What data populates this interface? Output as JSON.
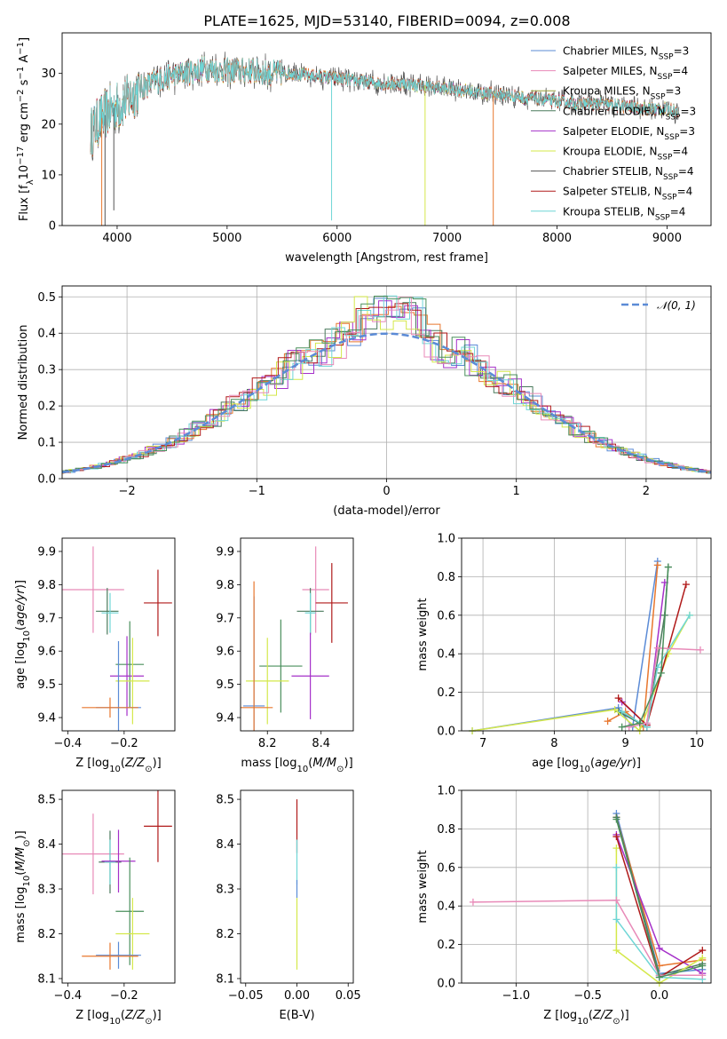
{
  "figure": {
    "title": "PLATE=1625, MJD=53140, FIBERID=0094, z=0.008"
  },
  "colors": {
    "Chabrier MILES": "#5b8bd6",
    "Salpeter MILES": "#e8772e",
    "Kroupa MILES": "#4a8f5c",
    "Chabrier ELODIE": "#4a7a5c",
    "Salpeter ELODIE": "#a530c9",
    "Kroupa ELODIE": "#d4e84a",
    "Chabrier STELIB": "#555555",
    "Salpeter STELIB": "#b01a1a",
    "Kroupa STELIB": "#6fd6d6",
    "Pink": "#e88ab8",
    "Normal": "#5b8bd6"
  },
  "chart_data": [
    {
      "id": "spectrum",
      "type": "line",
      "title": "PLATE=1625, MJD=53140, FIBERID=0094, z=0.008",
      "xlabel": "wavelength [Angstrom, rest frame]",
      "ylabel_parts": [
        "Flux [f",
        "λ",
        "10",
        "−17",
        " erg cm",
        "−2",
        " s",
        "−1",
        " A",
        "−1",
        "]"
      ],
      "xlim": [
        3500,
        9400
      ],
      "ylim": [
        0,
        38
      ],
      "xticks": [
        4000,
        5000,
        6000,
        7000,
        8000,
        9000
      ],
      "yticks": [
        0,
        10,
        20,
        30
      ],
      "legend_position": "top-right",
      "legend": [
        {
          "name": "Chabrier MILES",
          "nssp": "3",
          "color": "#5b8bd6"
        },
        {
          "name": "Salpeter MILES",
          "nssp": "4",
          "color": "#e88ab8"
        },
        {
          "name": "Kroupa MILES",
          "nssp": "3",
          "color": "#9aa03a"
        },
        {
          "name": "Chabrier ELODIE",
          "nssp": "3",
          "color": "#4a7a5c"
        },
        {
          "name": "Salpeter ELODIE",
          "nssp": "3",
          "color": "#a530c9"
        },
        {
          "name": "Kroupa ELODIE",
          "nssp": "4",
          "color": "#d4e84a"
        },
        {
          "name": "Chabrier STELIB",
          "nssp": "4",
          "color": "#555555"
        },
        {
          "name": "Salpeter STELIB",
          "nssp": "4",
          "color": "#b01a1a"
        },
        {
          "name": "Kroupa STELIB",
          "nssp": "4",
          "color": "#6fd6d6"
        }
      ],
      "continuum": {
        "x": [
          3750,
          3850,
          3950,
          4050,
          4200,
          4400,
          4600,
          4800,
          5000,
          5200,
          5400,
          5600,
          5800,
          6000,
          6200,
          6400,
          6600,
          6800,
          7000,
          7200,
          7400,
          7600,
          7800,
          8000,
          8200,
          8400,
          8600,
          8800,
          9000,
          9100
        ],
        "y": [
          18,
          21,
          23,
          24,
          27,
          29,
          30,
          31,
          30.5,
          30.5,
          30,
          30,
          29.5,
          29,
          28.5,
          28,
          28,
          27.5,
          27,
          26.5,
          26,
          25.5,
          25,
          24.5,
          24,
          24,
          23.5,
          23,
          23,
          22.5
        ]
      },
      "dips": [
        {
          "x": 3860,
          "y": 0
        },
        {
          "x": 3890,
          "y": 0
        },
        {
          "x": 3970,
          "y": 3
        },
        {
          "x": 5950,
          "y": 1
        },
        {
          "x": 6800,
          "y": 0
        },
        {
          "x": 7420,
          "y": 0
        }
      ]
    },
    {
      "id": "residuals",
      "type": "line",
      "xlabel": "(data-model)/error",
      "ylabel": "Normed distribution",
      "xlim": [
        -2.5,
        2.5
      ],
      "ylim": [
        0,
        0.53
      ],
      "xticks": [
        -2,
        -1,
        0,
        1,
        2
      ],
      "yticks": [
        0.0,
        0.1,
        0.2,
        0.3,
        0.4,
        0.5
      ],
      "grid": true,
      "legend_position": "top-right",
      "normal_label": "𝒩(0, 1)"
    },
    {
      "id": "age-vs-Z",
      "type": "scatter",
      "xlabel": "Z [log10(Z/Z⊙)]",
      "ylabel": "age  [log10(age/yr)]",
      "xlim": [
        -0.42,
        -0.02
      ],
      "ylim": [
        9.36,
        9.94
      ],
      "xticks": [
        -0.4,
        -0.2
      ],
      "yticks": [
        9.4,
        9.5,
        9.6,
        9.7,
        9.8,
        9.9
      ],
      "points": [
        {
          "x": -0.31,
          "y": 9.785,
          "xerr": 0.11,
          "yerr": 0.13,
          "color": "#e88ab8"
        },
        {
          "x": -0.26,
          "y": 9.72,
          "xerr": 0.04,
          "yerr": 0.07,
          "color": "#4a7a5c"
        },
        {
          "x": -0.25,
          "y": 9.715,
          "xerr": 0.03,
          "yerr": 0.06,
          "color": "#6fd6d6"
        },
        {
          "x": -0.08,
          "y": 9.745,
          "xerr": 0.05,
          "yerr": 0.1,
          "color": "#b01a1a"
        },
        {
          "x": -0.18,
          "y": 9.56,
          "xerr": 0.05,
          "yerr": 0.13,
          "color": "#4a8f5c"
        },
        {
          "x": -0.19,
          "y": 9.525,
          "xerr": 0.06,
          "yerr": 0.12,
          "color": "#a530c9"
        },
        {
          "x": -0.17,
          "y": 9.51,
          "xerr": 0.06,
          "yerr": 0.13,
          "color": "#d4e84a"
        },
        {
          "x": -0.22,
          "y": 9.43,
          "xerr": 0.08,
          "yerr": 0.2,
          "color": "#5b8bd6"
        },
        {
          "x": -0.25,
          "y": 9.43,
          "xerr": 0.1,
          "yerr": 0.03,
          "color": "#e8772e"
        }
      ]
    },
    {
      "id": "age-vs-mass",
      "type": "scatter",
      "xlabel": "mass [log10(M/M⊙)]",
      "ylabel": "",
      "xlim": [
        8.1,
        8.52
      ],
      "ylim": [
        9.36,
        9.94
      ],
      "xticks": [
        8.2,
        8.4
      ],
      "yticks": [
        9.4,
        9.5,
        9.6,
        9.7,
        9.8,
        9.9
      ],
      "points": [
        {
          "x": 8.38,
          "y": 9.785,
          "xerr": 0.05,
          "yerr": 0.13,
          "color": "#e88ab8"
        },
        {
          "x": 8.36,
          "y": 9.72,
          "xerr": 0.05,
          "yerr": 0.07,
          "color": "#4a7a5c"
        },
        {
          "x": 8.36,
          "y": 9.715,
          "xerr": 0.02,
          "yerr": 0.06,
          "color": "#6fd6d6"
        },
        {
          "x": 8.44,
          "y": 9.745,
          "xerr": 0.06,
          "yerr": 0.12,
          "color": "#b01a1a"
        },
        {
          "x": 8.25,
          "y": 9.555,
          "xerr": 0.08,
          "yerr": 0.14,
          "color": "#4a8f5c"
        },
        {
          "x": 8.36,
          "y": 9.525,
          "xerr": 0.07,
          "yerr": 0.13,
          "color": "#a530c9"
        },
        {
          "x": 8.2,
          "y": 9.51,
          "xerr": 0.08,
          "yerr": 0.13,
          "color": "#d4e84a"
        },
        {
          "x": 8.15,
          "y": 9.435,
          "xerr": 0.04,
          "yerr": 0.33,
          "color": "#5b8bd6"
        },
        {
          "x": 8.15,
          "y": 9.43,
          "xerr": 0.07,
          "yerr": 0.38,
          "color": "#e8772e"
        }
      ]
    },
    {
      "id": "mass-weight-vs-age",
      "type": "line",
      "xlabel": "age  [log10(age/yr)]",
      "ylabel": "mass weight",
      "xlim": [
        6.7,
        10.2
      ],
      "ylim": [
        0,
        1.0
      ],
      "xticks": [
        7,
        8,
        9,
        10
      ],
      "yticks": [
        0.0,
        0.2,
        0.4,
        0.6,
        0.8,
        1.0
      ],
      "grid": true,
      "series": [
        {
          "color": "#5b8bd6",
          "x": [
            6.85,
            8.9,
            9.1,
            9.45
          ],
          "y": [
            0.0,
            0.12,
            0.02,
            0.88
          ]
        },
        {
          "color": "#e8772e",
          "x": [
            8.75,
            9.0,
            9.25,
            9.45
          ],
          "y": [
            0.05,
            0.1,
            0.02,
            0.86
          ]
        },
        {
          "color": "#4a7a5c",
          "x": [
            8.9,
            9.3,
            9.55,
            9.6
          ],
          "y": [
            0.1,
            0.02,
            0.6,
            0.85
          ]
        },
        {
          "color": "#a530c9",
          "x": [
            8.95,
            9.3,
            9.55
          ],
          "y": [
            0.15,
            0.03,
            0.77
          ]
        },
        {
          "color": "#d4e84a",
          "x": [
            6.85,
            8.85,
            9.2,
            9.6,
            9.9
          ],
          "y": [
            0.0,
            0.11,
            0.0,
            0.4,
            0.6
          ]
        },
        {
          "color": "#b01a1a",
          "x": [
            8.9,
            9.3,
            9.85
          ],
          "y": [
            0.17,
            0.03,
            0.76
          ]
        },
        {
          "color": "#6fd6d6",
          "x": [
            8.95,
            9.3,
            9.45,
            9.9
          ],
          "y": [
            0.1,
            0.02,
            0.33,
            0.6
          ]
        },
        {
          "color": "#e88ab8",
          "x": [
            9.05,
            9.3,
            9.45,
            10.05
          ],
          "y": [
            0.02,
            0.04,
            0.43,
            0.42
          ]
        },
        {
          "color": "#4a8f5c",
          "x": [
            8.95,
            9.2,
            9.5,
            9.6
          ],
          "y": [
            0.02,
            0.04,
            0.3,
            0.85
          ]
        }
      ]
    },
    {
      "id": "mass-vs-Z",
      "type": "scatter",
      "xlabel": "Z [log10(Z/Z⊙)]",
      "ylabel": "mass [log10(M/M⊙)]",
      "xlim": [
        -0.42,
        -0.02
      ],
      "ylim": [
        8.09,
        8.52
      ],
      "xticks": [
        -0.4,
        -0.2
      ],
      "yticks": [
        8.1,
        8.2,
        8.3,
        8.4,
        8.5
      ],
      "points": [
        {
          "x": -0.31,
          "y": 8.378,
          "xerr": 0.11,
          "yerr": 0.09,
          "color": "#e88ab8"
        },
        {
          "x": -0.25,
          "y": 8.36,
          "xerr": 0.04,
          "yerr": 0.07,
          "color": "#4a7a5c"
        },
        {
          "x": -0.25,
          "y": 8.36,
          "xerr": 0.02,
          "yerr": 0.05,
          "color": "#6fd6d6"
        },
        {
          "x": -0.08,
          "y": 8.44,
          "xerr": 0.05,
          "yerr": 0.08,
          "color": "#b01a1a"
        },
        {
          "x": -0.22,
          "y": 8.362,
          "xerr": 0.06,
          "yerr": 0.07,
          "color": "#a530c9"
        },
        {
          "x": -0.18,
          "y": 8.25,
          "xerr": 0.05,
          "yerr": 0.12,
          "color": "#4a8f5c"
        },
        {
          "x": -0.17,
          "y": 8.2,
          "xerr": 0.06,
          "yerr": 0.08,
          "color": "#d4e84a"
        },
        {
          "x": -0.22,
          "y": 8.152,
          "xerr": 0.08,
          "yerr": 0.03,
          "color": "#5b8bd6"
        },
        {
          "x": -0.25,
          "y": 8.15,
          "xerr": 0.1,
          "yerr": 0.03,
          "color": "#e8772e"
        }
      ]
    },
    {
      "id": "mass-vs-EBV",
      "type": "scatter",
      "xlabel": "E(B-V)",
      "ylabel": "",
      "xlim": [
        -0.055,
        0.055
      ],
      "ylim": [
        8.09,
        8.52
      ],
      "xticks": [
        -0.05,
        0.0,
        0.05
      ],
      "xticklabels": [
        "−0.05",
        "0.00",
        "0.05"
      ],
      "yticks": [
        8.1,
        8.2,
        8.3,
        8.4,
        8.5
      ],
      "points": [
        {
          "x": 0.0,
          "y": 8.44,
          "yerr": 0.06,
          "color": "#b01a1a"
        },
        {
          "x": 0.0,
          "y": 8.36,
          "yerr": 0.05,
          "color": "#6fd6d6"
        },
        {
          "x": 0.0,
          "y": 8.3,
          "yerr": 0.02,
          "color": "#5b8bd6"
        },
        {
          "x": 0.0,
          "y": 8.2,
          "yerr": 0.08,
          "color": "#d4e84a"
        }
      ]
    },
    {
      "id": "mass-weight-vs-Z",
      "type": "line",
      "xlabel": "Z [log10(Z/Z⊙)]",
      "ylabel": "mass weight",
      "xlim": [
        -1.38,
        0.36
      ],
      "ylim": [
        0,
        1.0
      ],
      "xticks": [
        -1.0,
        -0.5,
        0.0
      ],
      "xticklabels": [
        "−1.0",
        "−0.5",
        "0.0"
      ],
      "yticks": [
        0.0,
        0.2,
        0.4,
        0.6,
        0.8,
        1.0
      ],
      "grid": true,
      "series": [
        {
          "color": "#5b8bd6",
          "x": [
            -0.3,
            0.0,
            0.3
          ],
          "y": [
            0.88,
            0.05,
            0.07
          ]
        },
        {
          "color": "#e8772e",
          "x": [
            -0.3,
            0.0,
            0.3
          ],
          "y": [
            0.86,
            0.09,
            0.12
          ]
        },
        {
          "color": "#4a7a5c",
          "x": [
            -0.3,
            0.0,
            0.3
          ],
          "y": [
            0.86,
            0.04,
            0.1
          ]
        },
        {
          "color": "#a530c9",
          "x": [
            -0.3,
            0.0,
            0.3
          ],
          "y": [
            0.77,
            0.18,
            0.05
          ]
        },
        {
          "color": "#d4e84a",
          "x": [
            -0.3,
            -0.3,
            0.0,
            0.3
          ],
          "y": [
            0.7,
            0.17,
            0.0,
            0.13
          ]
        },
        {
          "color": "#b01a1a",
          "x": [
            -0.3,
            0.0,
            0.3
          ],
          "y": [
            0.76,
            0.03,
            0.17
          ]
        },
        {
          "color": "#6fd6d6",
          "x": [
            -0.3,
            -0.3,
            0.0,
            0.3
          ],
          "y": [
            0.6,
            0.33,
            0.03,
            0.02
          ]
        },
        {
          "color": "#e88ab8",
          "x": [
            -1.3,
            -0.3,
            0.0,
            0.3
          ],
          "y": [
            0.42,
            0.43,
            0.04,
            0.04
          ]
        },
        {
          "color": "#4a8f5c",
          "x": [
            -0.3,
            0.0,
            0.3
          ],
          "y": [
            0.85,
            0.03,
            0.09
          ]
        }
      ]
    }
  ]
}
